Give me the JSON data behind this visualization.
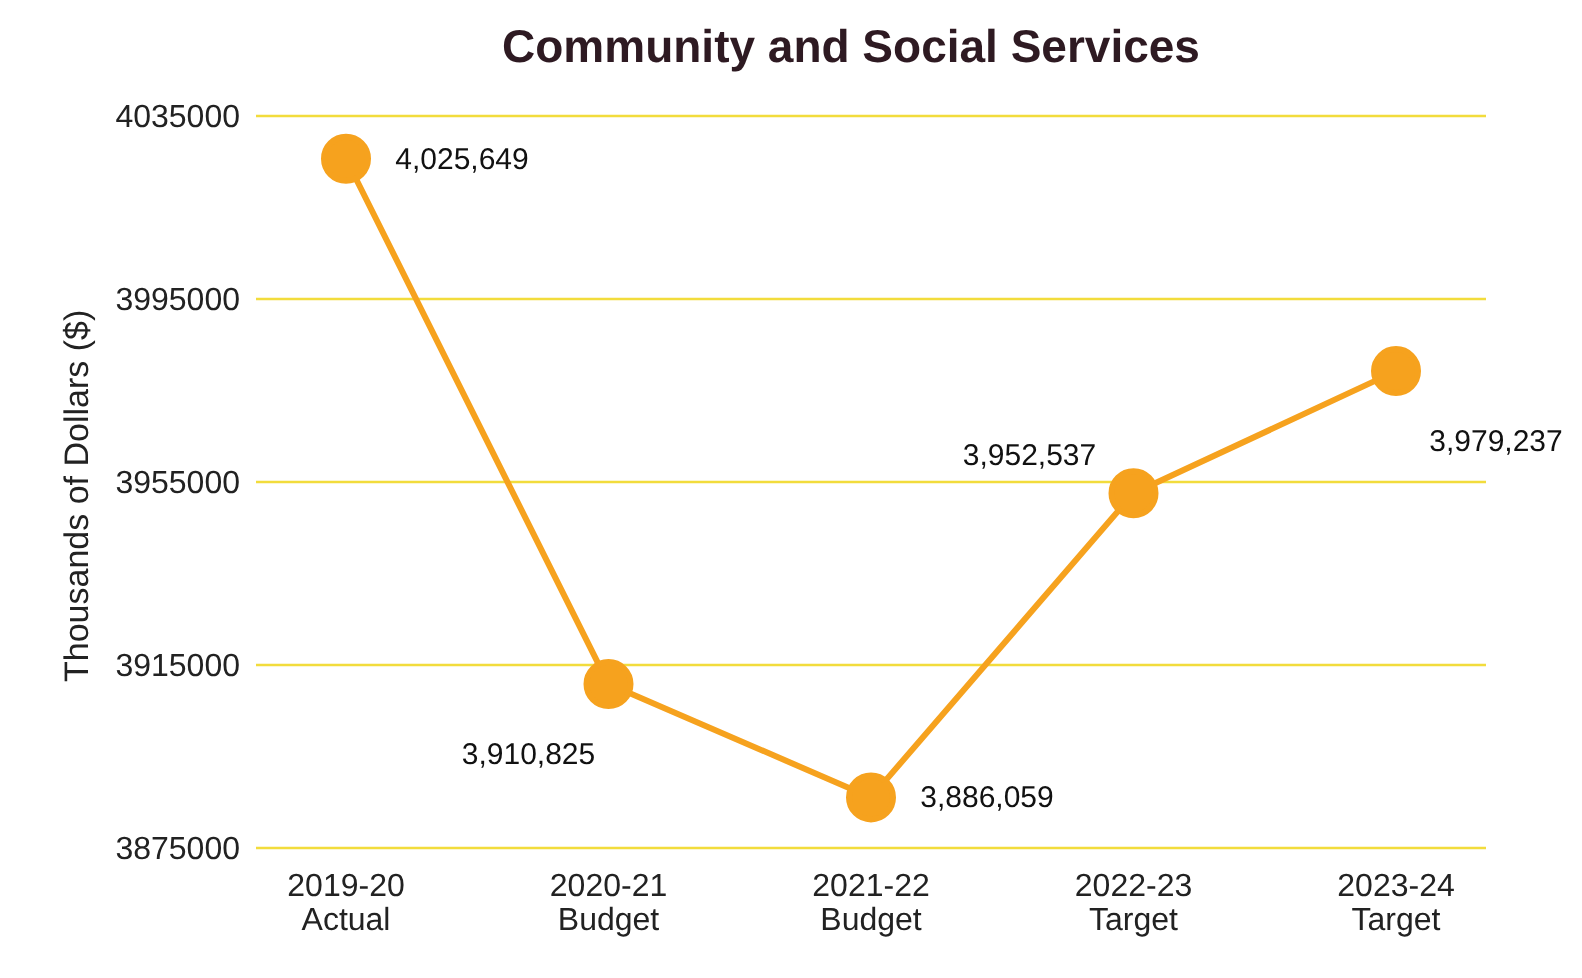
{
  "chart_data": {
    "type": "line",
    "title": "Community and Social Services",
    "ylabel": "Thousands of Dollars ($)",
    "categories": [
      "2019-20 Actual",
      "2020-21 Budget",
      "2021-22 Budget",
      "2022-23 Target",
      "2023-24 Target"
    ],
    "series": [
      {
        "color": "#f6a21e",
        "values": [
          4025649,
          3910825,
          3886059,
          3952537,
          3979237
        ],
        "value_labels": [
          "4,025,649",
          "3,910,825",
          "3,886,059",
          "3,952,537",
          "3,979,237"
        ]
      }
    ],
    "ylim": [
      3875000,
      4035000
    ],
    "yticks": [
      3875000,
      3915000,
      3955000,
      3995000,
      4035000
    ],
    "grid": "y",
    "legend": false,
    "marker": "circle",
    "line_style": "solid"
  }
}
